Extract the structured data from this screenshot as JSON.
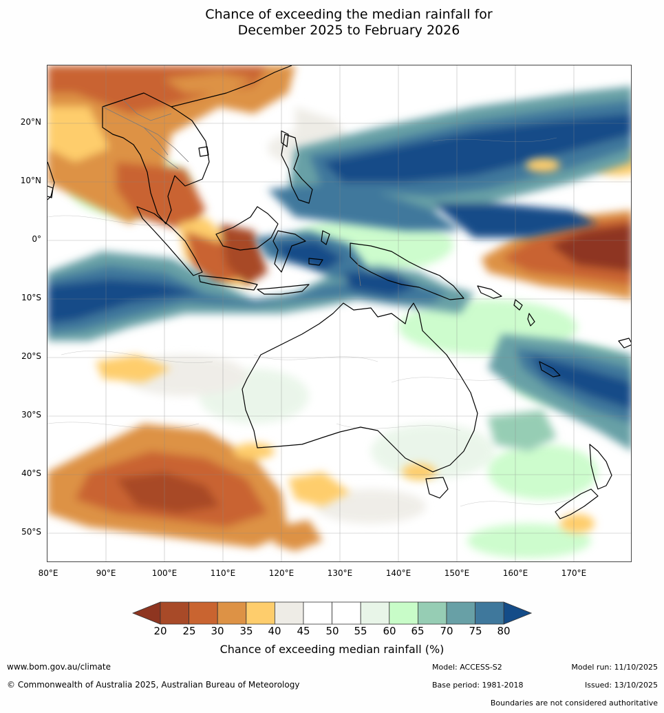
{
  "title": {
    "line1": "Chance of exceeding the median rainfall for",
    "line2": "December 2025 to February 2026"
  },
  "map": {
    "type": "choropleth-map",
    "region": "Australia, Maritime Continent and surrounding oceans",
    "lat_range": [
      -55,
      30
    ],
    "lon_range": [
      80,
      180
    ],
    "lat_labels": [
      "20°N",
      "10°N",
      "0°",
      "10°S",
      "20°S",
      "30°S",
      "40°S",
      "50°S"
    ],
    "lon_labels": [
      "80°E",
      "90°E",
      "100°E",
      "110°E",
      "120°E",
      "130°E",
      "140°E",
      "150°E",
      "160°E",
      "170°E"
    ]
  },
  "legend": {
    "ticks": [
      "20",
      "25",
      "30",
      "35",
      "40",
      "45",
      "50",
      "55",
      "60",
      "65",
      "70",
      "75",
      "80"
    ],
    "colors": [
      "#8e3520",
      "#a84a28",
      "#c96430",
      "#dd9245",
      "#fecd6c",
      "#eeece6",
      "#ffffff",
      "#ffffff",
      "#e8f5e8",
      "#c8fcc8",
      "#96cdb4",
      "#68a0a6",
      "#3f789c",
      "#144c88"
    ],
    "title": "Chance of exceeding median rainfall (%)"
  },
  "footer": {
    "website": "www.bom.gov.au/climate",
    "copyright": "© Commonwealth of Australia 2025, Australian Bureau of Meteorology",
    "model": "Model: ACCESS-S2",
    "base_period": "Base period: 1981-2018",
    "model_run": "Model run: 11/10/2025",
    "issued": "Issued: 13/10/2025",
    "disclaimer": "Boundaries are not considered authoritative"
  }
}
